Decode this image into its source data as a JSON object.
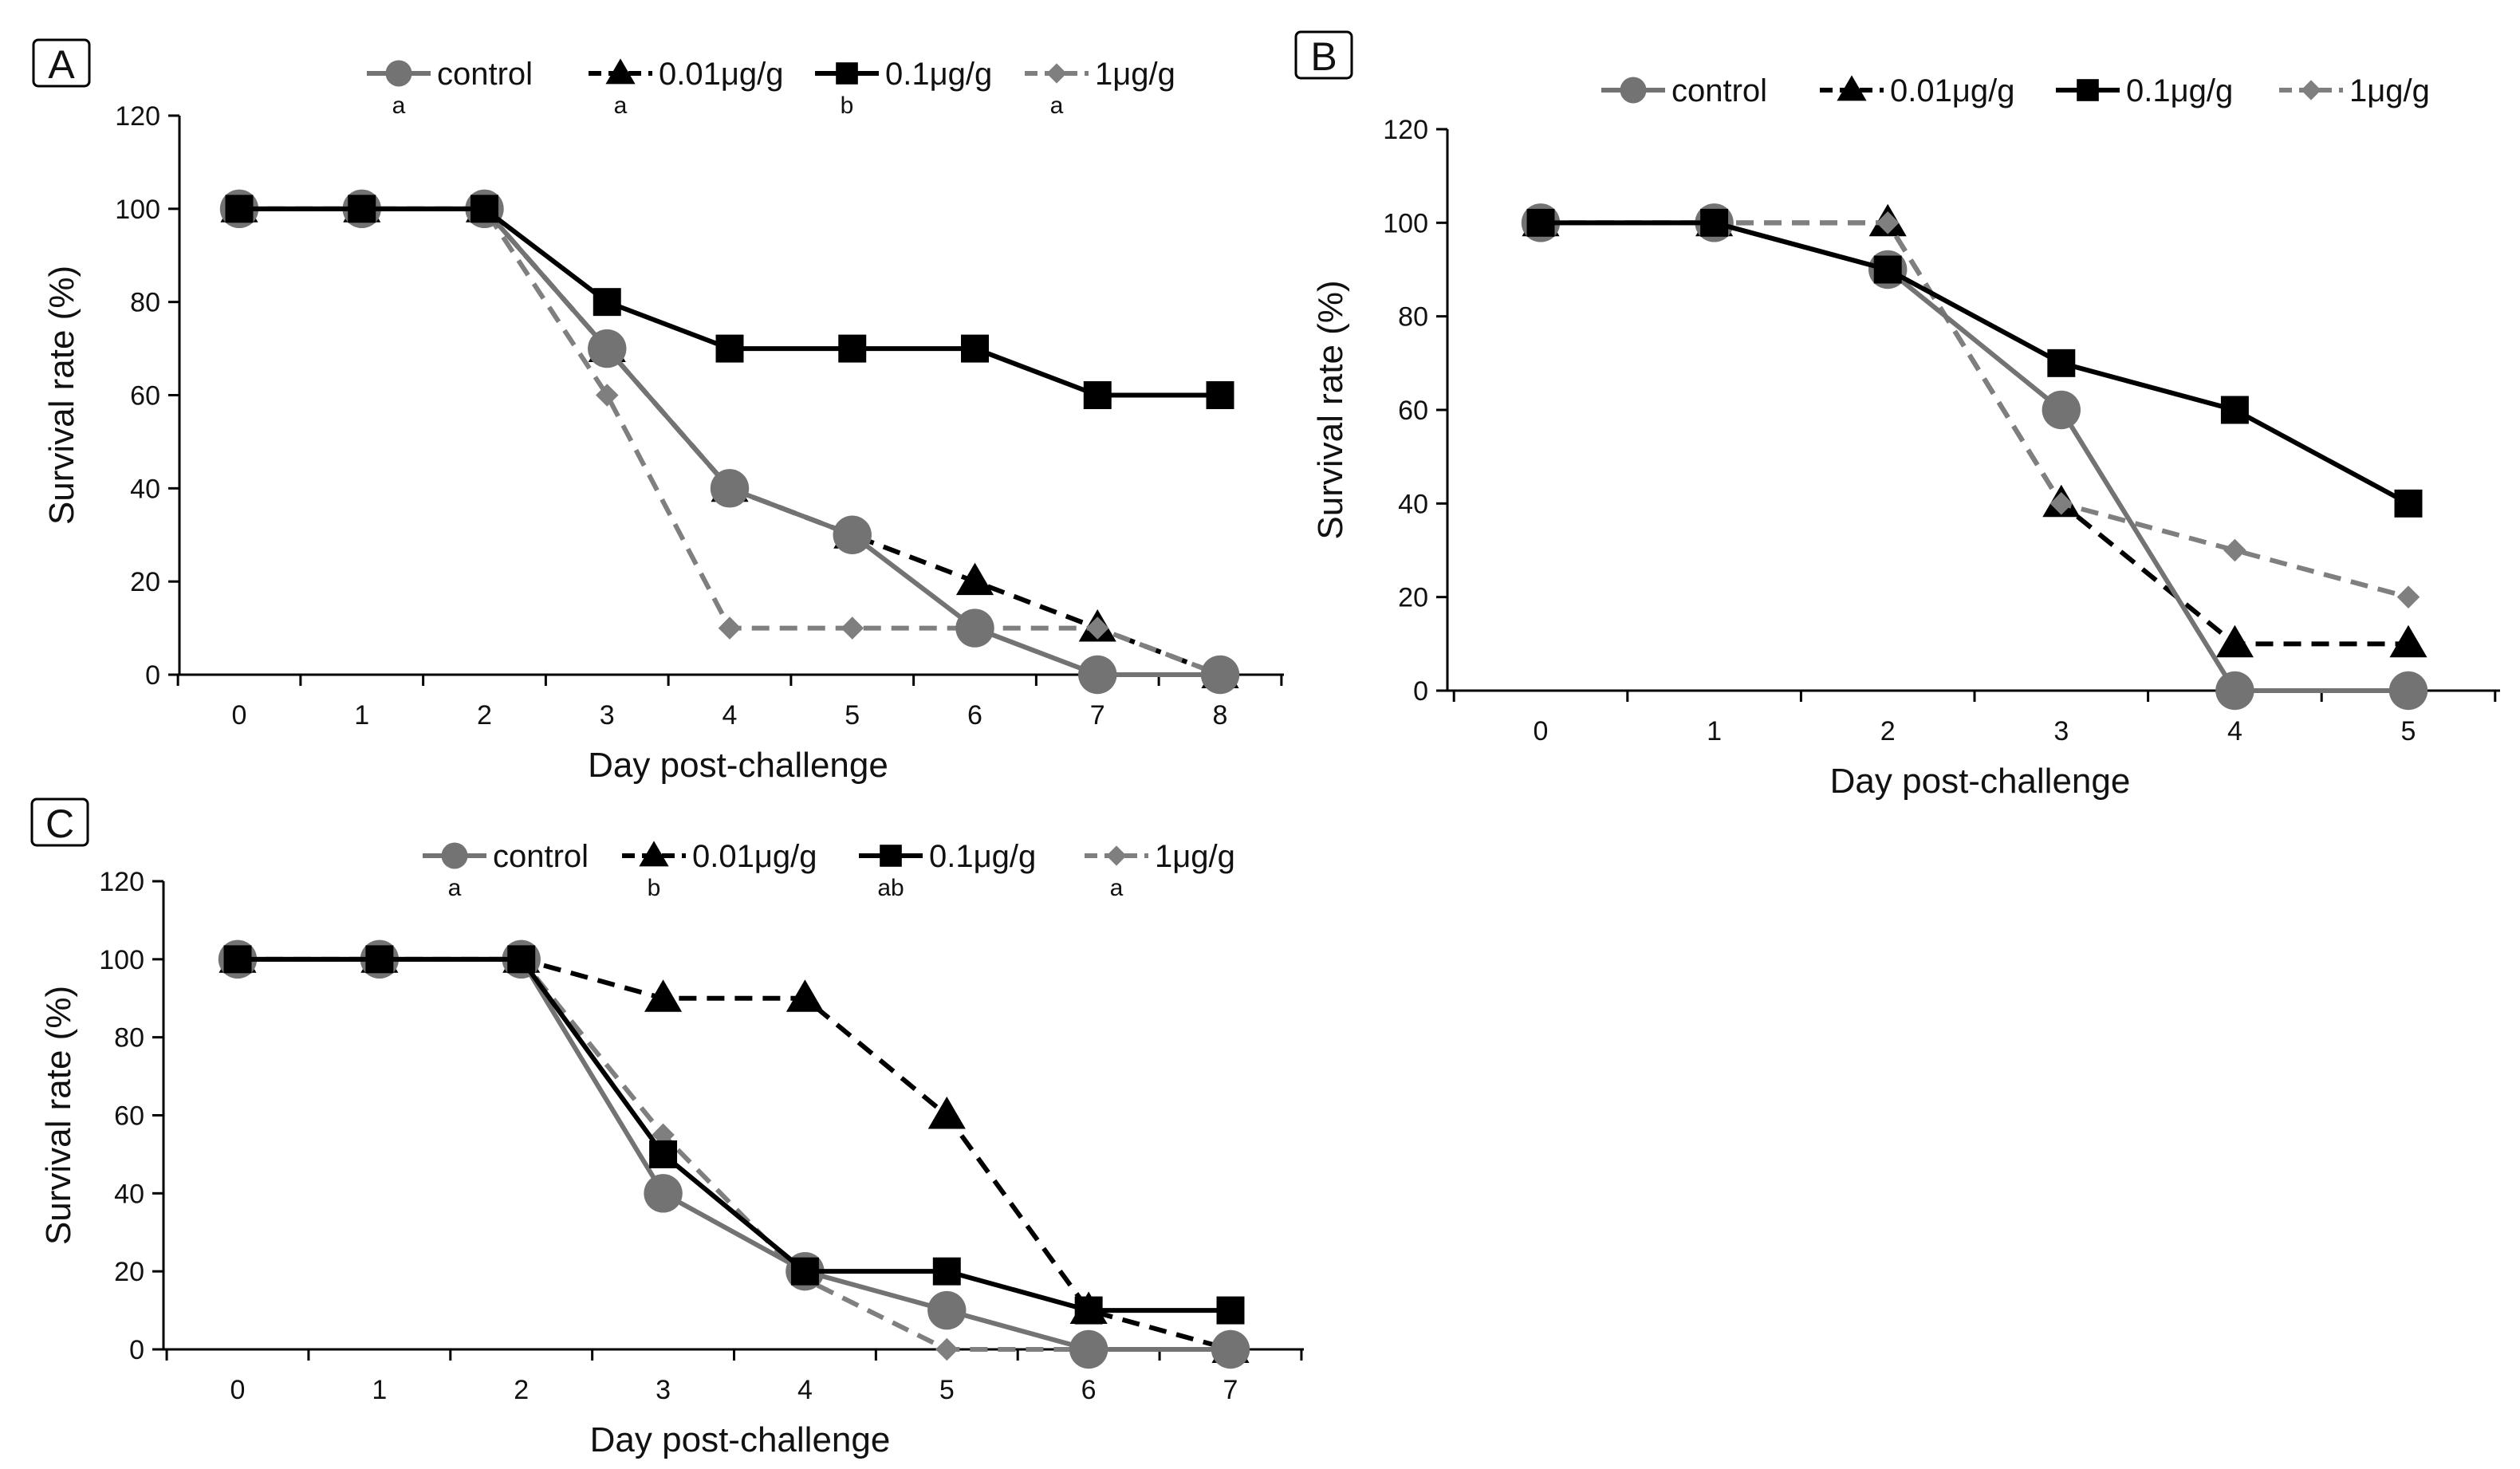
{
  "chart_data": [
    {
      "type": "line",
      "panel": "A",
      "xlabel": "Day post-challenge",
      "ylabel": "Survival rate (%)",
      "x": [
        0,
        1,
        2,
        3,
        4,
        5,
        6,
        7,
        8
      ],
      "xlim": [
        0,
        8
      ],
      "ylim": [
        0,
        120
      ],
      "yticks": [
        0,
        20,
        40,
        60,
        80,
        100,
        120
      ],
      "grid": false,
      "legend_position": "top",
      "series": [
        {
          "name": "control",
          "letter": "a",
          "marker": "circle",
          "color": "#737373",
          "dash": "solid",
          "values": [
            100,
            100,
            100,
            70,
            40,
            30,
            10,
            0,
            0
          ]
        },
        {
          "name": "0.01μg/g",
          "letter": "a",
          "marker": "triangle",
          "color": "#000000",
          "dash": "dashed",
          "values": [
            100,
            100,
            100,
            70,
            40,
            30,
            20,
            10,
            0
          ]
        },
        {
          "name": "0.1μg/g",
          "letter": "b",
          "marker": "square",
          "color": "#000000",
          "dash": "solid",
          "values": [
            100,
            100,
            100,
            80,
            70,
            70,
            70,
            60,
            60
          ]
        },
        {
          "name": "1μg/g",
          "letter": "a",
          "marker": "diamond",
          "color": "#7f7f7f",
          "dash": "dashed",
          "values": [
            100,
            100,
            100,
            60,
            10,
            10,
            10,
            10,
            0
          ]
        }
      ]
    },
    {
      "type": "line",
      "panel": "B",
      "xlabel": "Day post-challenge",
      "ylabel": "Survival rate (%)",
      "x": [
        0,
        1,
        2,
        3,
        4,
        5
      ],
      "xlim": [
        0,
        5
      ],
      "ylim": [
        0,
        120
      ],
      "yticks": [
        0,
        20,
        40,
        60,
        80,
        100,
        120
      ],
      "grid": false,
      "legend_position": "top",
      "series": [
        {
          "name": "control",
          "letter": "",
          "marker": "circle",
          "color": "#737373",
          "dash": "solid",
          "values": [
            100,
            100,
            90,
            60,
            0,
            0
          ]
        },
        {
          "name": "0.01μg/g",
          "letter": "",
          "marker": "triangle",
          "color": "#000000",
          "dash": "dashed",
          "values": [
            100,
            100,
            100,
            40,
            10,
            10
          ]
        },
        {
          "name": "0.1μg/g",
          "letter": "",
          "marker": "square",
          "color": "#000000",
          "dash": "solid",
          "values": [
            100,
            100,
            90,
            70,
            60,
            40
          ]
        },
        {
          "name": "1μg/g",
          "letter": "",
          "marker": "diamond",
          "color": "#7f7f7f",
          "dash": "dashed",
          "values": [
            100,
            100,
            100,
            40,
            30,
            20
          ]
        }
      ]
    },
    {
      "type": "line",
      "panel": "C",
      "xlabel": "Day post-challenge",
      "ylabel": "Survival rate (%)",
      "x": [
        0,
        1,
        2,
        3,
        4,
        5,
        6,
        7
      ],
      "xlim": [
        0,
        7
      ],
      "ylim": [
        0,
        120
      ],
      "yticks": [
        0,
        20,
        40,
        60,
        80,
        100,
        120
      ],
      "grid": false,
      "legend_position": "top",
      "series": [
        {
          "name": "control",
          "letter": "a",
          "marker": "circle",
          "color": "#737373",
          "dash": "solid",
          "values": [
            100,
            100,
            100,
            40,
            20,
            10,
            0,
            0
          ]
        },
        {
          "name": "0.01μg/g",
          "letter": "b",
          "marker": "triangle",
          "color": "#000000",
          "dash": "dashed",
          "values": [
            100,
            100,
            100,
            90,
            90,
            60,
            10,
            0
          ]
        },
        {
          "name": "0.1μg/g",
          "letter": "ab",
          "marker": "square",
          "color": "#000000",
          "dash": "solid",
          "values": [
            100,
            100,
            100,
            50,
            20,
            20,
            10,
            10
          ]
        },
        {
          "name": "1μg/g",
          "letter": "a",
          "marker": "diamond",
          "color": "#7f7f7f",
          "dash": "dashed",
          "values": [
            100,
            100,
            100,
            55,
            18,
            0,
            0,
            0
          ]
        }
      ]
    }
  ]
}
